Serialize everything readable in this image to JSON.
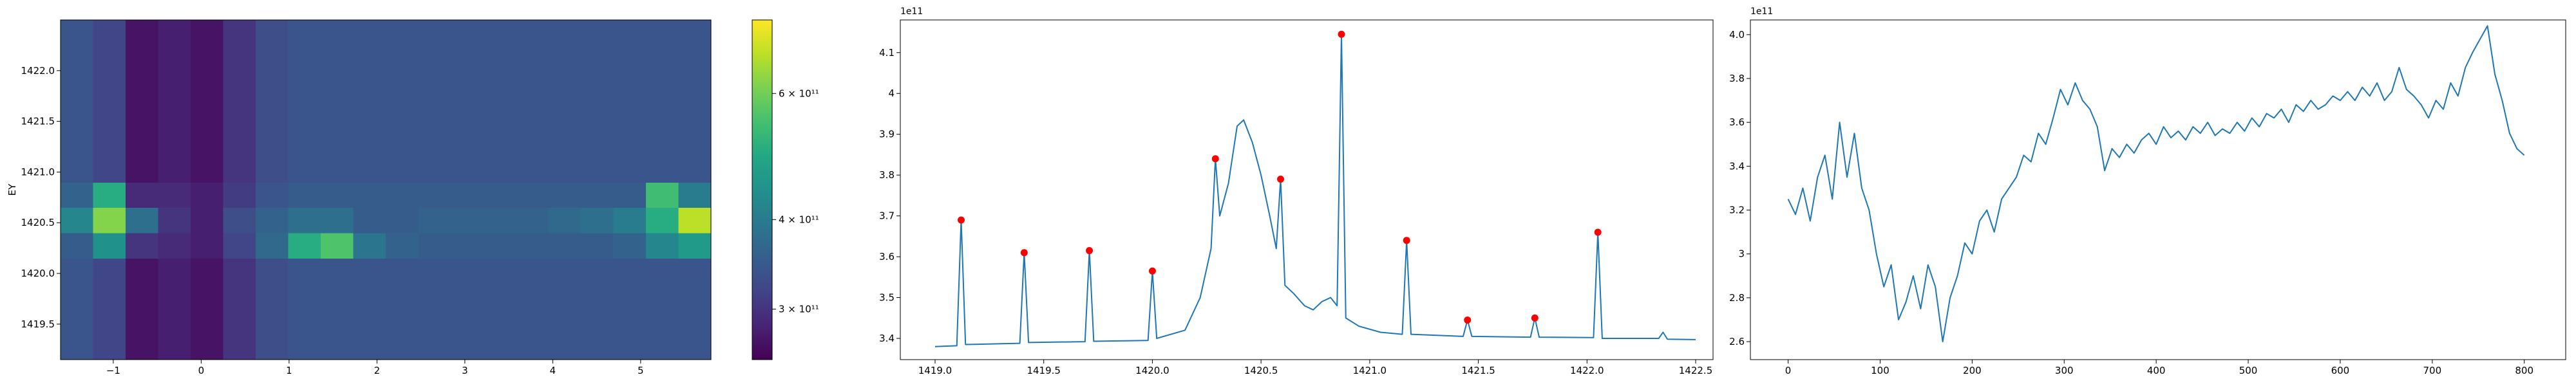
{
  "chart_data": [
    {
      "type": "heatmap",
      "ylabel": "EY",
      "xlim": [
        -1.6,
        5.8
      ],
      "ylim": [
        1419.15,
        1422.5
      ],
      "xticks": [
        {
          "value": -1,
          "label": "−1"
        },
        0,
        1,
        2,
        3,
        4,
        5
      ],
      "yticks": [
        1419.5,
        {
          "value": 1420,
          "label": "1420.0"
        },
        1420.5,
        {
          "value": 1421,
          "label": "1421.0"
        },
        1421.5,
        {
          "value": 1422,
          "label": "1422.0"
        }
      ],
      "x_edges": [
        -1.6,
        -1.23,
        -0.86,
        -0.49,
        -0.12,
        0.25,
        0.62,
        0.99,
        1.36,
        1.73,
        2.1,
        2.47,
        2.84,
        3.21,
        3.58,
        3.95,
        4.32,
        4.69,
        5.06,
        5.43,
        5.8
      ],
      "y_edges": [
        1419.15,
        1419.4,
        1419.65,
        1419.9,
        1420.15,
        1420.4,
        1420.65,
        1420.9,
        1421.15,
        1421.4,
        1421.65,
        1421.9,
        1422.15,
        1422.5
      ],
      "colormap": "viridis",
      "clim": [
        255000000000.0,
        760000000000.0
      ],
      "color_log": true,
      "cticks": [
        {
          "value": 300000000000.0,
          "label": "3 × 10¹¹"
        },
        {
          "value": 400000000000.0,
          "label": "4 × 10¹¹"
        },
        {
          "value": 600000000000.0,
          "label": "6 × 10¹¹"
        }
      ],
      "z": [
        [
          340000000000.0,
          320000000000.0,
          270000000000.0,
          280000000000.0,
          270000000000.0,
          300000000000.0,
          330000000000.0,
          340000000000.0,
          340000000000.0,
          340000000000.0,
          340000000000.0,
          340000000000.0,
          340000000000.0,
          340000000000.0,
          340000000000.0,
          340000000000.0,
          340000000000.0,
          340000000000.0,
          340000000000.0,
          340000000000.0
        ],
        [
          340000000000.0,
          320000000000.0,
          270000000000.0,
          280000000000.0,
          270000000000.0,
          300000000000.0,
          330000000000.0,
          340000000000.0,
          340000000000.0,
          340000000000.0,
          340000000000.0,
          340000000000.0,
          340000000000.0,
          340000000000.0,
          340000000000.0,
          340000000000.0,
          340000000000.0,
          340000000000.0,
          340000000000.0,
          340000000000.0
        ],
        [
          340000000000.0,
          320000000000.0,
          270000000000.0,
          280000000000.0,
          270000000000.0,
          300000000000.0,
          330000000000.0,
          340000000000.0,
          340000000000.0,
          340000000000.0,
          340000000000.0,
          340000000000.0,
          340000000000.0,
          340000000000.0,
          340000000000.0,
          340000000000.0,
          340000000000.0,
          340000000000.0,
          340000000000.0,
          340000000000.0
        ],
        [
          340000000000.0,
          320000000000.0,
          270000000000.0,
          280000000000.0,
          270000000000.0,
          300000000000.0,
          330000000000.0,
          340000000000.0,
          340000000000.0,
          340000000000.0,
          340000000000.0,
          340000000000.0,
          340000000000.0,
          340000000000.0,
          340000000000.0,
          340000000000.0,
          340000000000.0,
          340000000000.0,
          340000000000.0,
          340000000000.0
        ],
        [
          350000000000.0,
          440000000000.0,
          300000000000.0,
          290000000000.0,
          280000000000.0,
          320000000000.0,
          370000000000.0,
          500000000000.0,
          560000000000.0,
          390000000000.0,
          360000000000.0,
          350000000000.0,
          350000000000.0,
          350000000000.0,
          350000000000.0,
          350000000000.0,
          350000000000.0,
          360000000000.0,
          420000000000.0,
          460000000000.0
        ],
        [
          420000000000.0,
          620000000000.0,
          380000000000.0,
          300000000000.0,
          280000000000.0,
          330000000000.0,
          360000000000.0,
          380000000000.0,
          380000000000.0,
          350000000000.0,
          350000000000.0,
          360000000000.0,
          360000000000.0,
          360000000000.0,
          360000000000.0,
          370000000000.0,
          380000000000.0,
          400000000000.0,
          500000000000.0,
          680000000000.0
        ],
        [
          360000000000.0,
          500000000000.0,
          290000000000.0,
          290000000000.0,
          280000000000.0,
          310000000000.0,
          340000000000.0,
          350000000000.0,
          350000000000.0,
          350000000000.0,
          350000000000.0,
          350000000000.0,
          350000000000.0,
          350000000000.0,
          350000000000.0,
          350000000000.0,
          350000000000.0,
          350000000000.0,
          540000000000.0,
          400000000000.0
        ],
        [
          340000000000.0,
          320000000000.0,
          270000000000.0,
          280000000000.0,
          270000000000.0,
          300000000000.0,
          330000000000.0,
          340000000000.0,
          340000000000.0,
          340000000000.0,
          340000000000.0,
          340000000000.0,
          340000000000.0,
          340000000000.0,
          340000000000.0,
          340000000000.0,
          340000000000.0,
          340000000000.0,
          340000000000.0,
          340000000000.0
        ],
        [
          340000000000.0,
          320000000000.0,
          270000000000.0,
          280000000000.0,
          270000000000.0,
          300000000000.0,
          330000000000.0,
          340000000000.0,
          340000000000.0,
          340000000000.0,
          340000000000.0,
          340000000000.0,
          340000000000.0,
          340000000000.0,
          340000000000.0,
          340000000000.0,
          340000000000.0,
          340000000000.0,
          340000000000.0,
          340000000000.0
        ],
        [
          340000000000.0,
          320000000000.0,
          270000000000.0,
          280000000000.0,
          270000000000.0,
          300000000000.0,
          330000000000.0,
          340000000000.0,
          340000000000.0,
          340000000000.0,
          340000000000.0,
          340000000000.0,
          340000000000.0,
          340000000000.0,
          340000000000.0,
          340000000000.0,
          340000000000.0,
          340000000000.0,
          340000000000.0,
          340000000000.0
        ],
        [
          340000000000.0,
          320000000000.0,
          270000000000.0,
          280000000000.0,
          270000000000.0,
          300000000000.0,
          330000000000.0,
          340000000000.0,
          340000000000.0,
          340000000000.0,
          340000000000.0,
          340000000000.0,
          340000000000.0,
          340000000000.0,
          340000000000.0,
          340000000000.0,
          340000000000.0,
          340000000000.0,
          340000000000.0,
          340000000000.0
        ],
        [
          340000000000.0,
          320000000000.0,
          270000000000.0,
          280000000000.0,
          270000000000.0,
          300000000000.0,
          330000000000.0,
          340000000000.0,
          340000000000.0,
          340000000000.0,
          340000000000.0,
          340000000000.0,
          340000000000.0,
          340000000000.0,
          340000000000.0,
          340000000000.0,
          340000000000.0,
          340000000000.0,
          340000000000.0,
          340000000000.0
        ],
        [
          340000000000.0,
          320000000000.0,
          270000000000.0,
          280000000000.0,
          270000000000.0,
          300000000000.0,
          330000000000.0,
          340000000000.0,
          340000000000.0,
          340000000000.0,
          340000000000.0,
          340000000000.0,
          340000000000.0,
          340000000000.0,
          340000000000.0,
          340000000000.0,
          340000000000.0,
          340000000000.0,
          340000000000.0,
          340000000000.0
        ]
      ]
    },
    {
      "type": "line",
      "offset_text": "1e11",
      "color": "#1f77b4",
      "peak_color": "#ff0000",
      "xlim": [
        1418.84,
        1422.58
      ],
      "ylim": [
        3.348,
        4.18
      ],
      "xticks": [
        {
          "value": 1419,
          "label": "1419.0"
        },
        1419.5,
        {
          "value": 1420,
          "label": "1420.0"
        },
        1420.5,
        {
          "value": 1421,
          "label": "1421.0"
        },
        1421.5,
        {
          "value": 1422,
          "label": "1422.0"
        },
        1422.5
      ],
      "yticks": [
        3.4,
        3.5,
        3.6,
        3.7,
        3.8,
        3.9,
        4.0,
        4.1
      ],
      "x": [
        1419.0,
        1419.1,
        1419.12,
        1419.14,
        1419.39,
        1419.41,
        1419.43,
        1419.69,
        1419.71,
        1419.73,
        1419.98,
        1420.0,
        1420.02,
        1420.15,
        1420.22,
        1420.27,
        1420.29,
        1420.31,
        1420.35,
        1420.39,
        1420.42,
        1420.46,
        1420.5,
        1420.54,
        1420.57,
        1420.59,
        1420.61,
        1420.65,
        1420.7,
        1420.74,
        1420.78,
        1420.82,
        1420.85,
        1420.87,
        1420.89,
        1420.95,
        1421.05,
        1421.15,
        1421.17,
        1421.19,
        1421.43,
        1421.45,
        1421.47,
        1421.74,
        1421.76,
        1421.78,
        1422.03,
        1422.05,
        1422.07,
        1422.33,
        1422.35,
        1422.37,
        1422.5
      ],
      "values": [
        3.38,
        3.382,
        3.69,
        3.385,
        3.388,
        3.61,
        3.39,
        3.392,
        3.615,
        3.393,
        3.395,
        3.565,
        3.4,
        3.42,
        3.5,
        3.62,
        3.84,
        3.7,
        3.78,
        3.92,
        3.935,
        3.88,
        3.8,
        3.7,
        3.62,
        3.79,
        3.53,
        3.51,
        3.48,
        3.47,
        3.49,
        3.5,
        3.48,
        4.145,
        3.45,
        3.43,
        3.415,
        3.41,
        3.64,
        3.41,
        3.405,
        3.445,
        3.405,
        3.403,
        3.45,
        3.403,
        3.402,
        3.66,
        3.4,
        3.4,
        3.415,
        3.398,
        3.397
      ],
      "peaks_x": [
        1419.12,
        1419.41,
        1419.71,
        1420.0,
        1420.29,
        1420.59,
        1420.87,
        1421.17,
        1421.45,
        1421.76,
        1422.05
      ],
      "peaks_values": [
        3.69,
        3.61,
        3.615,
        3.565,
        3.84,
        3.79,
        4.145,
        3.64,
        3.445,
        3.45,
        3.66
      ]
    },
    {
      "type": "line",
      "offset_text": "1e11",
      "color": "#1f77b4",
      "xlim": [
        -41,
        845
      ],
      "ylim": [
        2.518,
        4.067
      ],
      "xticks": [
        0,
        100,
        200,
        300,
        400,
        500,
        600,
        700,
        800
      ],
      "yticks": [
        2.6,
        2.8,
        3.0,
        3.2,
        3.4,
        3.6,
        3.8,
        {
          "value": 4.0,
          "label": "4.0"
        }
      ],
      "x": [
        0,
        8,
        16,
        24,
        32,
        40,
        48,
        56,
        64,
        72,
        80,
        88,
        96,
        104,
        112,
        120,
        128,
        136,
        144,
        152,
        160,
        168,
        176,
        184,
        192,
        200,
        208,
        216,
        224,
        232,
        240,
        248,
        256,
        264,
        272,
        280,
        288,
        296,
        304,
        312,
        320,
        328,
        336,
        344,
        352,
        360,
        368,
        376,
        384,
        392,
        400,
        408,
        416,
        424,
        432,
        440,
        448,
        456,
        464,
        472,
        480,
        488,
        496,
        504,
        512,
        520,
        528,
        536,
        544,
        552,
        560,
        568,
        576,
        584,
        592,
        600,
        608,
        616,
        624,
        632,
        640,
        648,
        656,
        664,
        672,
        680,
        688,
        696,
        704,
        712,
        720,
        728,
        736,
        744,
        752,
        760,
        768,
        776,
        784,
        792,
        800
      ],
      "values": [
        3.25,
        3.18,
        3.3,
        3.15,
        3.35,
        3.45,
        3.25,
        3.6,
        3.35,
        3.55,
        3.3,
        3.2,
        3.0,
        2.85,
        2.95,
        2.7,
        2.78,
        2.9,
        2.75,
        2.95,
        2.85,
        2.6,
        2.8,
        2.9,
        3.05,
        3.0,
        3.15,
        3.2,
        3.1,
        3.25,
        3.3,
        3.35,
        3.45,
        3.42,
        3.55,
        3.5,
        3.62,
        3.75,
        3.68,
        3.78,
        3.7,
        3.66,
        3.58,
        3.38,
        3.48,
        3.44,
        3.5,
        3.46,
        3.52,
        3.55,
        3.5,
        3.58,
        3.53,
        3.56,
        3.52,
        3.58,
        3.55,
        3.6,
        3.54,
        3.57,
        3.55,
        3.6,
        3.56,
        3.62,
        3.58,
        3.64,
        3.62,
        3.66,
        3.6,
        3.68,
        3.65,
        3.7,
        3.66,
        3.68,
        3.72,
        3.7,
        3.74,
        3.7,
        3.76,
        3.72,
        3.78,
        3.7,
        3.74,
        3.85,
        3.75,
        3.72,
        3.68,
        3.62,
        3.7,
        3.66,
        3.78,
        3.72,
        3.85,
        3.92,
        3.98,
        4.04,
        3.82,
        3.7,
        3.55,
        3.48,
        3.45
      ]
    }
  ]
}
